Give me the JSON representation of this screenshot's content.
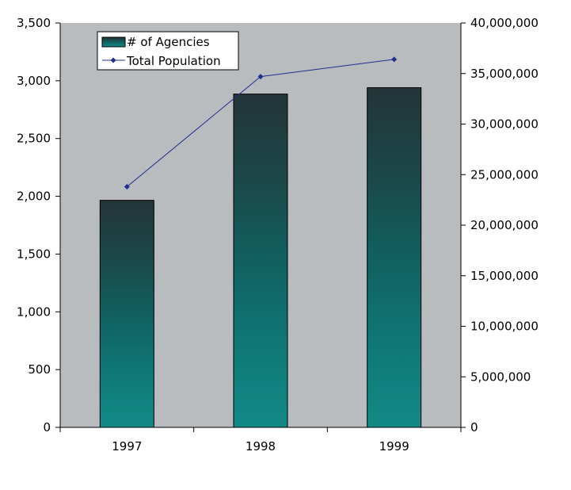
{
  "chart_data": {
    "type": "bar",
    "title": "",
    "xlabel": "",
    "ylabel": "",
    "categories": [
      "1997",
      "1998",
      "1999"
    ],
    "series": [
      {
        "name": "# of Agencies",
        "type": "bar",
        "axis": "left",
        "values": [
          1965,
          2885,
          2940
        ],
        "color": "#12837f"
      },
      {
        "name": "Total Population",
        "type": "line",
        "axis": "right",
        "values": [
          23800000,
          34700000,
          36400000
        ],
        "color": "#1f2f8f"
      }
    ],
    "y_left": {
      "range": [
        0,
        3500
      ],
      "ticks": [
        0,
        500,
        1000,
        1500,
        2000,
        2500,
        3000,
        3500
      ],
      "tick_labels": [
        "0",
        "500",
        "1,000",
        "1,500",
        "2,000",
        "2,500",
        "3,000",
        "3,500"
      ]
    },
    "y_right": {
      "range": [
        0,
        40000000
      ],
      "ticks": [
        0,
        5000000,
        10000000,
        15000000,
        20000000,
        25000000,
        30000000,
        35000000,
        40000000
      ],
      "tick_labels": [
        "0",
        "5,000,000",
        "10,000,000",
        "15,000,000",
        "20,000,000",
        "25,000,000",
        "30,000,000",
        "35,000,000",
        "40,000,000"
      ]
    },
    "grid": false,
    "legend": {
      "position": "top-left",
      "entries": [
        "# of Agencies",
        "Total Population"
      ]
    },
    "plot_background": "#b8bcbf"
  }
}
